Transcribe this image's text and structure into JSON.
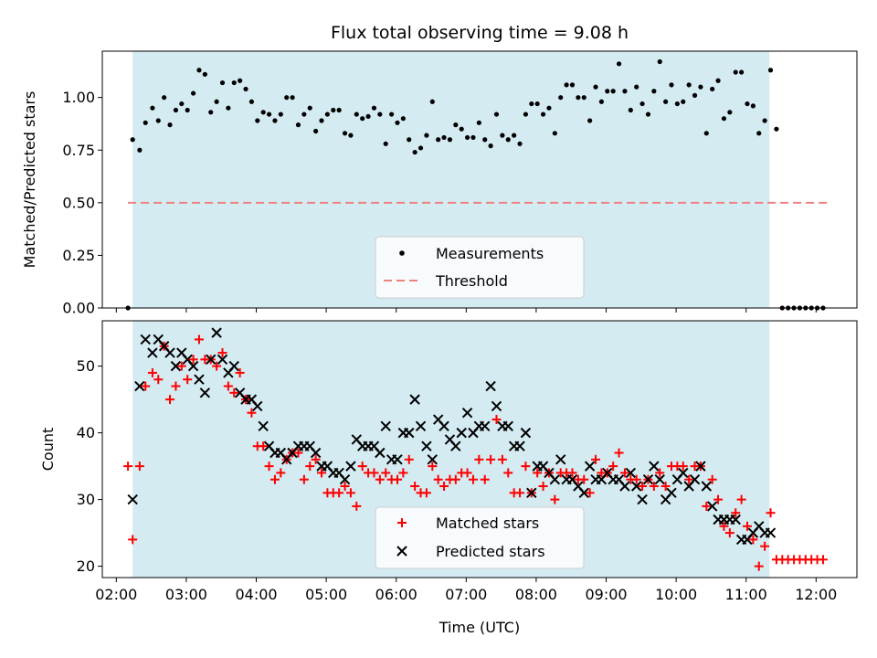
{
  "chart_data": [
    {
      "type": "scatter",
      "title": "Flux total observing time = 9.08 h",
      "xlabel": "",
      "ylabel": "Matched/Predicted stars",
      "ylim": [
        0,
        1.22
      ],
      "xlim": [
        "01:48",
        "12:35"
      ],
      "yticks": [
        "0.00",
        "0.25",
        "0.50",
        "0.75",
        "1.00"
      ],
      "shaded_interval": [
        "02:14",
        "11:20"
      ],
      "shaded_color": "#d4ebf2",
      "legend_position": "lower-center",
      "legend": [
        "Measurements",
        "Threshold"
      ],
      "threshold": {
        "name": "Threshold",
        "y": 0.5,
        "x": [
          "02:10",
          "12:10"
        ],
        "color": "#f08080"
      },
      "series": [
        {
          "name": "Measurements",
          "marker": "dot",
          "color": "#000000",
          "x": [
            "02:10",
            "02:14",
            "02:20",
            "02:25",
            "02:31",
            "02:36",
            "02:41",
            "02:46",
            "02:51",
            "02:56",
            "03:01",
            "03:06",
            "03:11",
            "03:16",
            "03:21",
            "03:26",
            "03:31",
            "03:36",
            "03:41",
            "03:46",
            "03:51",
            "03:56",
            "04:01",
            "04:06",
            "04:11",
            "04:16",
            "04:21",
            "04:26",
            "04:31",
            "04:36",
            "04:41",
            "04:46",
            "04:51",
            "04:56",
            "05:01",
            "05:06",
            "05:11",
            "05:16",
            "05:21",
            "05:26",
            "05:31",
            "05:36",
            "05:41",
            "05:46",
            "05:51",
            "05:56",
            "06:01",
            "06:06",
            "06:11",
            "06:16",
            "06:21",
            "06:26",
            "06:31",
            "06:36",
            "06:41",
            "06:46",
            "06:51",
            "06:56",
            "07:01",
            "07:06",
            "07:11",
            "07:16",
            "07:21",
            "07:26",
            "07:31",
            "07:36",
            "07:41",
            "07:46",
            "07:51",
            "07:56",
            "08:01",
            "08:06",
            "08:11",
            "08:16",
            "08:21",
            "08:26",
            "08:31",
            "08:36",
            "08:41",
            "08:46",
            "08:51",
            "08:56",
            "09:01",
            "09:06",
            "09:11",
            "09:16",
            "09:21",
            "09:26",
            "09:31",
            "09:36",
            "09:41",
            "09:46",
            "09:51",
            "09:56",
            "10:01",
            "10:06",
            "10:11",
            "10:16",
            "10:21",
            "10:26",
            "10:31",
            "10:36",
            "10:41",
            "10:46",
            "10:51",
            "10:56",
            "11:01",
            "11:06",
            "11:11",
            "11:16",
            "11:21",
            "11:26",
            "11:31",
            "11:36",
            "11:41",
            "11:46",
            "11:51",
            "11:56",
            "12:01",
            "12:06"
          ],
          "y": [
            0.0,
            0.8,
            0.75,
            0.88,
            0.95,
            0.89,
            1.0,
            0.87,
            0.94,
            0.97,
            0.94,
            1.02,
            1.13,
            1.11,
            0.93,
            0.98,
            1.07,
            0.95,
            1.07,
            1.08,
            1.04,
            0.98,
            0.89,
            0.93,
            0.92,
            0.89,
            0.92,
            1.0,
            1.0,
            0.87,
            0.92,
            0.95,
            0.84,
            0.89,
            0.92,
            0.94,
            0.94,
            0.83,
            0.82,
            0.92,
            0.9,
            0.91,
            0.95,
            0.92,
            0.78,
            0.92,
            0.88,
            0.9,
            0.8,
            0.74,
            0.76,
            0.82,
            0.98,
            0.8,
            0.81,
            0.8,
            0.87,
            0.85,
            0.81,
            0.81,
            0.88,
            0.8,
            0.77,
            0.92,
            0.82,
            0.8,
            0.82,
            0.78,
            0.92,
            0.97,
            0.97,
            0.92,
            0.95,
            0.83,
            1.0,
            1.06,
            1.06,
            1.0,
            1.0,
            0.89,
            1.05,
            0.98,
            1.03,
            1.03,
            1.16,
            1.03,
            0.94,
            1.05,
            0.97,
            0.92,
            1.03,
            1.17,
            0.98,
            1.06,
            0.97,
            0.98,
            1.06,
            1.01,
            1.05,
            0.83,
            1.04,
            1.08,
            0.9,
            0.93,
            1.12,
            1.12,
            0.97,
            0.96,
            0.83,
            0.89,
            1.13,
            0.85,
            0.0,
            0.0,
            0.0,
            0.0,
            0.0,
            0.0,
            0.0,
            0.0
          ]
        }
      ]
    },
    {
      "type": "scatter",
      "title": "",
      "xlabel": "Time (UTC)",
      "ylabel": "Count",
      "ylim": [
        18.3,
        56.8
      ],
      "xlim": [
        "01:48",
        "12:35"
      ],
      "yticks": [
        "20",
        "30",
        "40",
        "50"
      ],
      "xticks": [
        "02:00",
        "03:00",
        "04:00",
        "05:00",
        "06:00",
        "07:00",
        "08:00",
        "09:00",
        "10:00",
        "11:00",
        "12:00"
      ],
      "shaded_interval": [
        "02:14",
        "11:20"
      ],
      "legend_position": "lower-center",
      "legend": [
        "Matched stars",
        "Predicted stars"
      ],
      "series": [
        {
          "name": "Matched stars",
          "marker": "plus",
          "color": "#ff0000",
          "x": [
            "02:10",
            "02:14",
            "02:20",
            "02:25",
            "02:31",
            "02:36",
            "02:41",
            "02:46",
            "02:51",
            "02:56",
            "03:01",
            "03:06",
            "03:11",
            "03:16",
            "03:21",
            "03:26",
            "03:31",
            "03:36",
            "03:41",
            "03:46",
            "03:51",
            "03:56",
            "04:01",
            "04:06",
            "04:11",
            "04:16",
            "04:21",
            "04:26",
            "04:31",
            "04:36",
            "04:41",
            "04:46",
            "04:51",
            "04:56",
            "05:01",
            "05:06",
            "05:11",
            "05:16",
            "05:21",
            "05:26",
            "05:31",
            "05:36",
            "05:41",
            "05:46",
            "05:51",
            "05:56",
            "06:01",
            "06:06",
            "06:11",
            "06:16",
            "06:21",
            "06:26",
            "06:31",
            "06:36",
            "06:41",
            "06:46",
            "06:51",
            "06:56",
            "07:01",
            "07:06",
            "07:11",
            "07:16",
            "07:21",
            "07:26",
            "07:31",
            "07:36",
            "07:41",
            "07:46",
            "07:51",
            "07:56",
            "08:01",
            "08:06",
            "08:11",
            "08:16",
            "08:21",
            "08:26",
            "08:31",
            "08:36",
            "08:41",
            "08:46",
            "08:51",
            "08:56",
            "09:01",
            "09:06",
            "09:11",
            "09:16",
            "09:21",
            "09:26",
            "09:31",
            "09:36",
            "09:41",
            "09:46",
            "09:51",
            "09:56",
            "10:01",
            "10:06",
            "10:11",
            "10:16",
            "10:21",
            "10:26",
            "10:31",
            "10:36",
            "10:41",
            "10:46",
            "10:51",
            "10:56",
            "11:01",
            "11:06",
            "11:11",
            "11:16",
            "11:21",
            "11:26",
            "11:31",
            "11:36",
            "11:41",
            "11:46",
            "11:51",
            "11:56",
            "12:01",
            "12:06"
          ],
          "y": [
            35,
            24,
            35,
            47,
            49,
            48,
            53,
            45,
            47,
            50,
            48,
            51,
            54,
            51,
            51,
            50,
            52,
            47,
            46,
            49,
            45,
            43,
            38,
            38,
            35,
            33,
            34,
            36,
            37,
            37,
            33,
            35,
            36,
            34,
            31,
            31,
            31,
            32,
            31,
            29,
            35,
            34,
            34,
            33,
            34,
            33,
            33,
            34,
            36,
            32,
            31,
            31,
            35,
            33,
            32,
            33,
            33,
            34,
            34,
            33,
            36,
            33,
            36,
            42,
            36,
            34,
            31,
            31,
            35,
            31,
            34,
            32,
            34,
            30,
            34,
            34,
            34,
            33,
            33,
            31,
            36,
            34,
            34,
            35,
            37,
            34,
            33,
            33,
            32,
            33,
            32,
            34,
            32,
            35,
            35,
            35,
            33,
            35,
            35,
            29,
            33,
            30,
            26,
            25,
            28,
            30,
            26,
            24,
            20,
            23,
            28,
            21,
            21,
            21,
            21,
            21,
            21,
            21,
            21,
            21
          ]
        },
        {
          "name": "Predicted stars",
          "marker": "x",
          "color": "#000000",
          "x": [
            "02:14",
            "02:20",
            "02:25",
            "02:31",
            "02:36",
            "02:41",
            "02:46",
            "02:51",
            "02:56",
            "03:01",
            "03:06",
            "03:11",
            "03:16",
            "03:21",
            "03:26",
            "03:31",
            "03:36",
            "03:41",
            "03:46",
            "03:51",
            "03:56",
            "04:01",
            "04:06",
            "04:11",
            "04:16",
            "04:21",
            "04:26",
            "04:31",
            "04:36",
            "04:41",
            "04:46",
            "04:51",
            "04:56",
            "05:01",
            "05:06",
            "05:11",
            "05:16",
            "05:21",
            "05:26",
            "05:31",
            "05:36",
            "05:41",
            "05:46",
            "05:51",
            "05:56",
            "06:01",
            "06:06",
            "06:11",
            "06:16",
            "06:21",
            "06:26",
            "06:31",
            "06:36",
            "06:41",
            "06:46",
            "06:51",
            "06:56",
            "07:01",
            "07:06",
            "07:11",
            "07:16",
            "07:21",
            "07:26",
            "07:31",
            "07:36",
            "07:41",
            "07:46",
            "07:51",
            "07:56",
            "08:01",
            "08:06",
            "08:11",
            "08:16",
            "08:21",
            "08:26",
            "08:31",
            "08:36",
            "08:41",
            "08:46",
            "08:51",
            "08:56",
            "09:01",
            "09:06",
            "09:11",
            "09:16",
            "09:21",
            "09:26",
            "09:31",
            "09:36",
            "09:41",
            "09:46",
            "09:51",
            "09:56",
            "10:01",
            "10:06",
            "10:11",
            "10:16",
            "10:21",
            "10:26",
            "10:31",
            "10:36",
            "10:41",
            "10:46",
            "10:51",
            "10:56",
            "11:01",
            "11:06",
            "11:11",
            "11:16",
            "11:21"
          ],
          "y": [
            30,
            47,
            54,
            52,
            54,
            53,
            52,
            50,
            52,
            51,
            50,
            48,
            46,
            51,
            55,
            51,
            49,
            50,
            46,
            45,
            45,
            44,
            41,
            38,
            37,
            37,
            36,
            37,
            38,
            38,
            38,
            37,
            35,
            35,
            34,
            34,
            33,
            35,
            39,
            38,
            38,
            38,
            37,
            41,
            36,
            36,
            40,
            40,
            45,
            41,
            38,
            36,
            42,
            41,
            39,
            38,
            40,
            43,
            40,
            41,
            41,
            47,
            44,
            41,
            41,
            38,
            38,
            40,
            31,
            35,
            35,
            34,
            33,
            36,
            33,
            33,
            32,
            31,
            35,
            33,
            33,
            34,
            33,
            33,
            32,
            34,
            32,
            30,
            33,
            35,
            33,
            30,
            31,
            33,
            34,
            32,
            33,
            35,
            32,
            29,
            27,
            27,
            27,
            27,
            24,
            24,
            25,
            26,
            25,
            25
          ]
        }
      ]
    }
  ]
}
